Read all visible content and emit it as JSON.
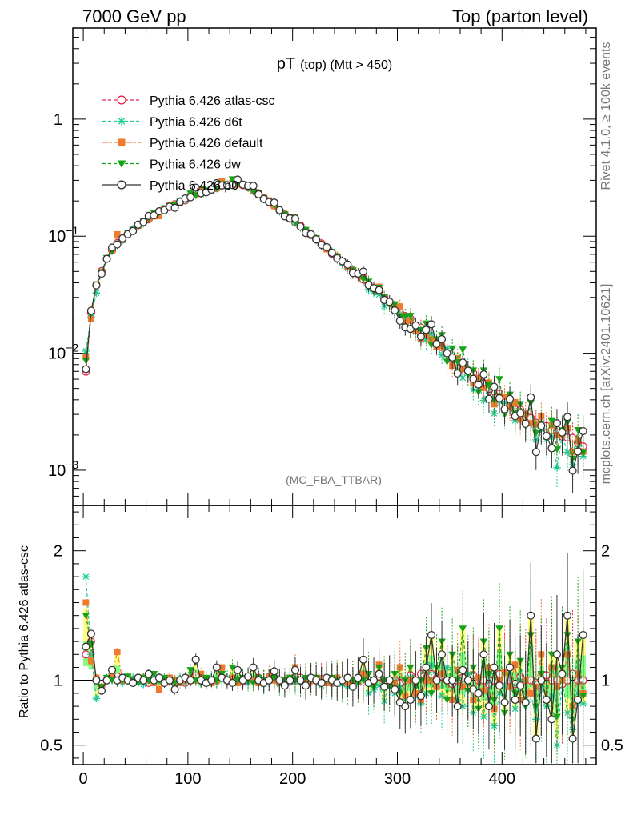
{
  "header": {
    "left": "7000 GeV pp",
    "right": "Top (parton level)"
  },
  "side_labels": {
    "rivet": "Rivet 4.1.0, ≥ 100k events",
    "mcplots": "mcplots.cern.ch [arXiv:2401.10621]"
  },
  "colors": {
    "atlas_csc": "#e8254d",
    "d6t": "#1fcc96",
    "default": "#f07a2e",
    "dw": "#17a317",
    "p0": "#333333",
    "band_yellow": "#ffff80",
    "band_green": "#80ff80"
  },
  "chart_data": [
    {
      "type": "line",
      "panel": "main",
      "title_main": "pT",
      "title_sub": "(top) (Mtt > 450)",
      "watermark": "(MC_FBA_TTBAR)",
      "yscale": "log",
      "xlim": [
        -10,
        490
      ],
      "ylim": [
        0.0005,
        6
      ],
      "y_ticks": [
        {
          "value": 1,
          "label": "1"
        },
        {
          "value": 0.1,
          "label_base": "10",
          "label_exp": "−1"
        },
        {
          "value": 0.01,
          "label_base": "10",
          "label_exp": "−2"
        },
        {
          "value": 0.001,
          "label_base": "10",
          "label_exp": "−3"
        }
      ],
      "legend_position": "top-left",
      "x": [
        2.5,
        7.5,
        12.5,
        17.5,
        22.5,
        27.5,
        32.5,
        37.5,
        42.5,
        47.5,
        52.5,
        57.5,
        62.5,
        67.5,
        72.5,
        77.5,
        82.5,
        87.5,
        92.5,
        97.5,
        102.5,
        107.5,
        112.5,
        117.5,
        122.5,
        127.5,
        132.5,
        137.5,
        142.5,
        147.5,
        152.5,
        157.5,
        162.5,
        167.5,
        172.5,
        177.5,
        182.5,
        187.5,
        192.5,
        197.5,
        202.5,
        207.5,
        212.5,
        217.5,
        222.5,
        227.5,
        232.5,
        237.5,
        242.5,
        247.5,
        252.5,
        257.5,
        262.5,
        267.5,
        272.5,
        277.5,
        282.5,
        287.5,
        292.5,
        297.5,
        302.5,
        307.5,
        312.5,
        317.5,
        322.5,
        327.5,
        332.5,
        337.5,
        342.5,
        347.5,
        352.5,
        357.5,
        362.5,
        367.5,
        372.5,
        377.5,
        382.5,
        387.5,
        392.5,
        397.5,
        402.5,
        407.5,
        412.5,
        417.5,
        422.5,
        427.5,
        432.5,
        437.5,
        442.5,
        447.5,
        452.5,
        457.5,
        462.5,
        467.5,
        472.5,
        477.5
      ],
      "reference": [
        0.0058,
        0.017,
        0.038,
        0.052,
        0.064,
        0.074,
        0.085,
        0.094,
        0.104,
        0.113,
        0.123,
        0.132,
        0.142,
        0.151,
        0.16,
        0.17,
        0.179,
        0.188,
        0.197,
        0.206,
        0.215,
        0.224,
        0.233,
        0.242,
        0.25,
        0.258,
        0.266,
        0.273,
        0.279,
        0.282,
        0.275,
        0.262,
        0.245,
        0.228,
        0.212,
        0.196,
        0.181,
        0.167,
        0.154,
        0.142,
        0.131,
        0.121,
        0.111,
        0.102,
        0.094,
        0.086,
        0.079,
        0.072,
        0.066,
        0.061,
        0.056,
        0.051,
        0.047,
        0.043,
        0.039,
        0.036,
        0.033,
        0.03,
        0.0275,
        0.025,
        0.0228,
        0.0208,
        0.019,
        0.0173,
        0.0158,
        0.0144,
        0.0131,
        0.012,
        0.011,
        0.01,
        0.0092,
        0.0084,
        0.0077,
        0.0071,
        0.0065,
        0.006,
        0.0055,
        0.0051,
        0.0047,
        0.0043,
        0.004,
        0.0037,
        0.0034,
        0.0032,
        0.003,
        0.0028,
        0.0026,
        0.0024,
        0.0023,
        0.0022,
        0.0021,
        0.002,
        0.0019,
        0.0018,
        0.0017,
        0.0016
      ],
      "series": [
        {
          "name": "Pythia 6.426 atlas-csc",
          "color_key": "atlas_csc",
          "marker": "open-circle",
          "dash": "dashed",
          "ratio": [
            1.2,
            1.3,
            1.0,
            0.97,
            1.0,
            1.02,
            1.03,
            1.0,
            1.0,
            1.0,
            1.02,
            1.0,
            0.98,
            1.0,
            1.02,
            1.0,
            0.99,
            1.0,
            1.0,
            0.98,
            1.0,
            1.03,
            1.0,
            0.99,
            1.0,
            1.0,
            1.02,
            1.0,
            1.0,
            1.0,
            0.99,
            1.0,
            1.0,
            1.02,
            1.0,
            1.0,
            1.01,
            1.0,
            1.0,
            0.99,
            1.0,
            1.02,
            1.0,
            1.0,
            1.0,
            1.01,
            1.0,
            0.98,
            1.0,
            1.0,
            1.02,
            1.0,
            1.0,
            0.99,
            1.0,
            1.0,
            1.03,
            1.0,
            1.0,
            1.0,
            0.98,
            1.0,
            1.04,
            1.0,
            1.05,
            1.0,
            1.05,
            1.0,
            1.03,
            1.0,
            0.97,
            1.0,
            1.02,
            1.0,
            1.04,
            1.0,
            1.0,
            0.97,
            1.0,
            1.05,
            1.0,
            1.0,
            0.97,
            1.03,
            1.0,
            1.0,
            0.98,
            1.0,
            1.04,
            1.0,
            1.0,
            0.97,
            1.0,
            1.05,
            1.0,
            1.0
          ]
        },
        {
          "name": "Pythia 6.426 d6t",
          "color_key": "d6t",
          "marker": "star",
          "dash": "dashed",
          "ratio": [
            1.8,
            1.2,
            0.86,
            0.95,
            1.0,
            1.05,
            1.0,
            0.98,
            1.0,
            1.02,
            1.0,
            0.97,
            1.0,
            1.03,
            1.0,
            0.98,
            1.0,
            1.0,
            1.02,
            0.98,
            1.04,
            1.0,
            0.98,
            1.0,
            1.02,
            0.99,
            1.0,
            1.02,
            0.98,
            1.0,
            1.01,
            0.98,
            1.0,
            1.02,
            0.97,
            1.0,
            1.0,
            0.97,
            1.0,
            1.02,
            0.99,
            1.0,
            0.97,
            1.0,
            1.02,
            0.96,
            1.0,
            0.98,
            1.02,
            0.97,
            0.95,
            1.0,
            0.98,
            1.05,
            0.9,
            0.93,
            0.96,
            0.84,
            1.0,
            0.9,
            0.95,
            0.85,
            1.02,
            0.88,
            0.82,
            0.9,
            1.12,
            0.95,
            0.88,
            1.1,
            1.0,
            0.85,
            0.8,
            1.05,
            0.75,
            0.9,
            0.72,
            1.05,
            0.65,
            0.9,
            0.95,
            1.1,
            0.78,
            1.0,
            0.85,
            0.9,
            0.7,
            0.95,
            0.8,
            0.88,
            0.5,
            1.0,
            0.75,
            0.62,
            0.9,
            0.82
          ]
        },
        {
          "name": "Pythia 6.426 default",
          "color_key": "default",
          "marker": "square",
          "dash": "dashdot",
          "ratio": [
            1.6,
            1.15,
            1.02,
            0.95,
            1.0,
            1.03,
            1.22,
            1.0,
            1.02,
            0.98,
            1.0,
            1.02,
            1.0,
            0.98,
            0.93,
            1.0,
            1.02,
            1.0,
            0.98,
            1.0,
            1.02,
            1.0,
            1.05,
            1.0,
            0.98,
            1.0,
            1.1,
            1.0,
            1.02,
            0.98,
            1.0,
            1.02,
            1.0,
            0.98,
            1.0,
            1.03,
            1.0,
            0.98,
            1.0,
            1.02,
            1.1,
            1.0,
            0.98,
            1.0,
            1.02,
            1.0,
            0.98,
            1.0,
            1.02,
            1.0,
            0.98,
            1.0,
            1.0,
            1.05,
            0.98,
            1.0,
            1.12,
            0.95,
            1.0,
            0.98,
            1.1,
            0.88,
            1.0,
            0.9,
            0.85,
            1.0,
            1.0,
            0.95,
            1.05,
            1.0,
            0.85,
            1.08,
            0.95,
            1.0,
            0.85,
            1.02,
            0.92,
            1.1,
            0.78,
            1.0,
            1.06,
            0.95,
            1.12,
            0.85,
            1.0,
            0.9,
            0.95,
            1.2,
            0.85,
            1.1,
            0.95,
            1.0,
            1.2,
            0.8,
            1.05,
            0.9
          ]
        },
        {
          "name": "Pythia 6.426 dw",
          "color_key": "dw",
          "marker": "triangle-down",
          "dash": "dashed",
          "ratio": [
            1.5,
            1.28,
            1.0,
            0.95,
            1.02,
            1.0,
            0.98,
            1.0,
            1.03,
            1.0,
            0.98,
            1.02,
            1.0,
            1.05,
            1.0,
            1.02,
            1.0,
            0.98,
            1.0,
            1.02,
            1.08,
            1.0,
            0.98,
            1.02,
            1.0,
            1.0,
            1.05,
            0.98,
            1.1,
            1.0,
            1.02,
            1.0,
            0.98,
            1.02,
            1.0,
            1.0,
            1.02,
            0.98,
            1.0,
            1.02,
            1.0,
            0.98,
            1.02,
            1.0,
            1.02,
            0.98,
            1.0,
            1.02,
            1.0,
            0.98,
            1.02,
            1.0,
            0.98,
            1.0,
            1.05,
            0.95,
            1.1,
            1.0,
            0.95,
            1.05,
            0.9,
            1.0,
            1.1,
            0.95,
            1.0,
            1.25,
            0.9,
            1.1,
            1.3,
            0.85,
            1.2,
            1.0,
            1.4,
            0.92,
            1.1,
            0.78,
            1.3,
            1.05,
            0.85,
            1.4,
            0.75,
            1.2,
            0.9,
            1.15,
            0.8,
            1.35,
            0.8,
            1.05,
            0.85,
            1.2,
            0.72,
            1.1,
            1.35,
            0.7,
            1.3,
            0.88
          ]
        },
        {
          "name": "Pythia 6.426 p0",
          "color_key": "p0",
          "marker": "open-circle",
          "dash": "solid",
          "ratio": [
            1.26,
            1.36,
            1.0,
            0.92,
            1.0,
            1.08,
            1.0,
            1.02,
            1.0,
            0.98,
            1.02,
            1.0,
            1.05,
            1.0,
            1.02,
            0.98,
            1.0,
            0.93,
            1.0,
            1.02,
            1.0,
            1.16,
            1.0,
            0.98,
            1.0,
            1.1,
            1.02,
            1.0,
            0.98,
            1.08,
            1.0,
            1.03,
            1.1,
            1.0,
            0.98,
            1.0,
            1.07,
            1.0,
            0.96,
            1.0,
            1.08,
            1.0,
            0.96,
            1.02,
            1.0,
            0.98,
            1.02,
            1.0,
            0.98,
            1.0,
            1.02,
            0.95,
            1.02,
            1.16,
            0.98,
            1.0,
            1.05,
            0.95,
            1.0,
            0.93,
            0.83,
            0.8,
            0.85,
            1.0,
            0.88,
            1.1,
            1.35,
            1.0,
            1.2,
            1.0,
            1.0,
            0.8,
            1.08,
            1.0,
            0.93,
            0.9,
            1.2,
            0.8,
            1.1,
            0.96,
            0.83,
            1.1,
            0.85,
            0.96,
            0.83,
            1.5,
            0.55,
            1.0,
            0.85,
            0.7,
            1.2,
            1.05,
            1.5,
            0.55,
            0.85,
            1.35
          ]
        }
      ]
    },
    {
      "type": "line",
      "panel": "ratio",
      "ylabel": "Ratio to Pythia 6.426 atlas-csc",
      "xlim": [
        -10,
        490
      ],
      "ylim": [
        0.35,
        2.35
      ],
      "y_ticks": [
        0.5,
        1,
        2
      ],
      "x_ticks": [
        0,
        100,
        200,
        300,
        400
      ],
      "reference_line": 1
    }
  ]
}
